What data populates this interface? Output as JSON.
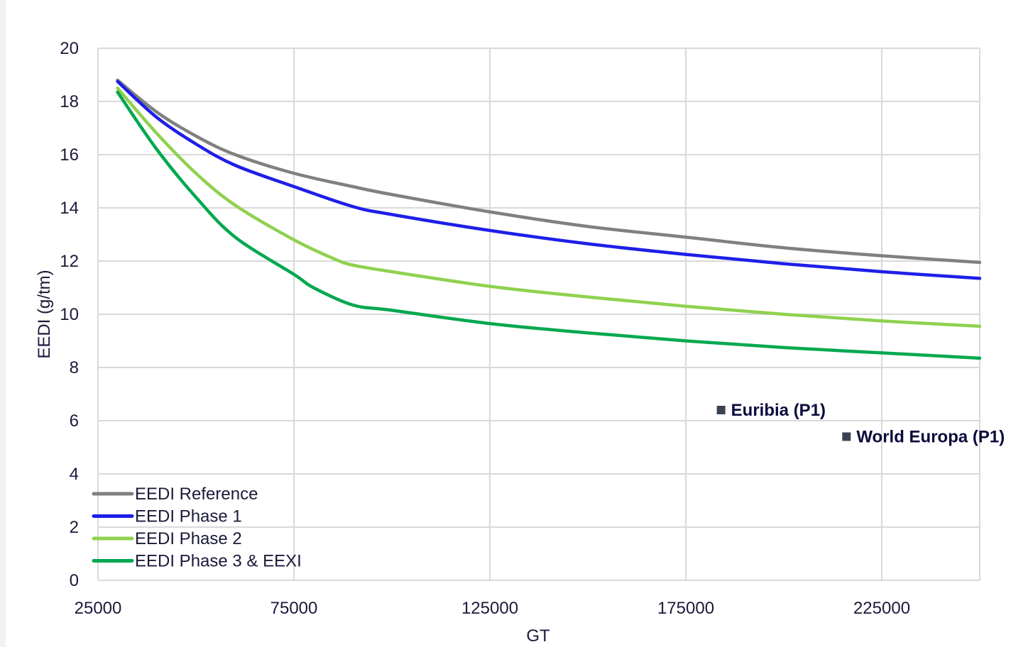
{
  "chart_data": {
    "type": "line",
    "title": "",
    "xlabel": "GT",
    "ylabel": "EEDI (g/tm)",
    "xlim": [
      25000,
      250000
    ],
    "ylim": [
      0,
      20
    ],
    "x_ticks": [
      "25000",
      "75000",
      "125000",
      "175000",
      "225000"
    ],
    "y_ticks": [
      "0",
      "2",
      "4",
      "6",
      "8",
      "10",
      "12",
      "14",
      "16",
      "18",
      "20"
    ],
    "grid": true,
    "legend_placement": "bottom-left",
    "series": [
      {
        "name": "EEDI Reference",
        "color": "#808080",
        "points": [
          [
            30000,
            18.8
          ],
          [
            40000,
            17.6
          ],
          [
            50000,
            16.7
          ],
          [
            60000,
            16.0
          ],
          [
            75000,
            15.3
          ],
          [
            90000,
            14.8
          ],
          [
            100000,
            14.5
          ],
          [
            125000,
            13.85
          ],
          [
            150000,
            13.3
          ],
          [
            175000,
            12.9
          ],
          [
            200000,
            12.5
          ],
          [
            225000,
            12.2
          ],
          [
            250000,
            11.95
          ]
        ]
      },
      {
        "name": "EEDI Phase 1",
        "color": "#1e1ee8",
        "points": [
          [
            30000,
            18.75
          ],
          [
            40000,
            17.4
          ],
          [
            50000,
            16.4
          ],
          [
            60000,
            15.6
          ],
          [
            75000,
            14.8
          ],
          [
            90000,
            14.05
          ],
          [
            100000,
            13.75
          ],
          [
            125000,
            13.15
          ],
          [
            150000,
            12.65
          ],
          [
            175000,
            12.25
          ],
          [
            200000,
            11.9
          ],
          [
            225000,
            11.6
          ],
          [
            250000,
            11.35
          ]
        ]
      },
      {
        "name": "EEDI Phase 2",
        "color": "#8fd14f",
        "points": [
          [
            30000,
            18.5
          ],
          [
            40000,
            16.8
          ],
          [
            50000,
            15.3
          ],
          [
            60000,
            14.1
          ],
          [
            75000,
            12.8
          ],
          [
            85000,
            12.1
          ],
          [
            90000,
            11.85
          ],
          [
            100000,
            11.6
          ],
          [
            125000,
            11.05
          ],
          [
            150000,
            10.65
          ],
          [
            175000,
            10.3
          ],
          [
            200000,
            10.0
          ],
          [
            225000,
            9.75
          ],
          [
            250000,
            9.55
          ]
        ]
      },
      {
        "name": "EEDI Phase 3 & EEXI",
        "color": "#00a84e",
        "points": [
          [
            30000,
            18.35
          ],
          [
            40000,
            16.2
          ],
          [
            50000,
            14.4
          ],
          [
            60000,
            12.9
          ],
          [
            75000,
            11.5
          ],
          [
            80000,
            11.0
          ],
          [
            90000,
            10.35
          ],
          [
            100000,
            10.15
          ],
          [
            125000,
            9.65
          ],
          [
            150000,
            9.3
          ],
          [
            175000,
            9.0
          ],
          [
            200000,
            8.75
          ],
          [
            225000,
            8.55
          ],
          [
            250000,
            8.35
          ]
        ]
      }
    ],
    "scatter_points": [
      {
        "name": "Euribia (P1)",
        "x": 184000,
        "y": 6.4,
        "color": "#3a4252"
      },
      {
        "name": "World Europa (P1)",
        "x": 216000,
        "y": 5.4,
        "color": "#3a4252"
      }
    ]
  }
}
